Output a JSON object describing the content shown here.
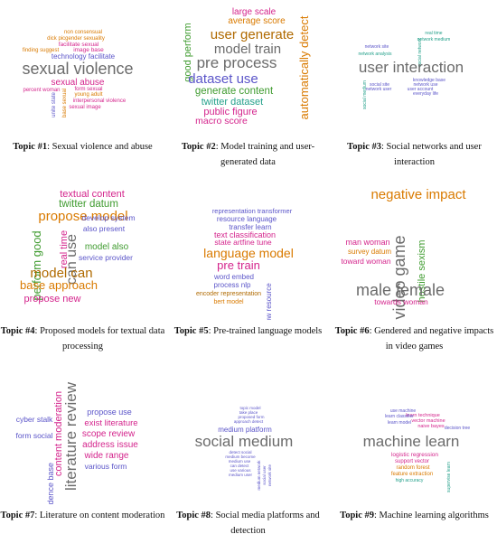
{
  "colors": {
    "gray": "#6b6b6b",
    "orange": "#d97a00",
    "green": "#3f9b2f",
    "magenta": "#d4248c",
    "purple": "#5b55c9",
    "teal": "#23a08a",
    "brown": "#b06a00"
  },
  "topics": [
    {
      "label": "Topic #1",
      "caption": ": Sexual violence and abuse",
      "words": [
        "non consensual",
        "dick picgender sexuality",
        "facilitate sexual",
        "finding suggest",
        "image base",
        "technology facilitate",
        "sexual violence",
        "sexual abuse",
        "percent woman",
        "form sexual",
        "young adult",
        "interpersonal violence",
        "sexual image",
        "unite state",
        "base sexual"
      ]
    },
    {
      "label": "Topic #2",
      "caption": ": Model training and user-generated data",
      "words": [
        "large scale",
        "average score",
        "good perform",
        "user generate",
        "model train",
        "pre process",
        "automatically detect",
        "dataset use",
        "generate content",
        "twitter dataset",
        "public figure",
        "macro score"
      ]
    },
    {
      "label": "Topic #3",
      "caption": ": Social networks and user interaction",
      "words": [
        "social network",
        "network site",
        "network analysis",
        "real time",
        "user interaction",
        "knowledge base",
        "social medium",
        "network use",
        "user account",
        "everyday life",
        "network user",
        "social site",
        "network medium"
      ]
    },
    {
      "label": "Topic #4",
      "caption": ": Proposed models for textual data processing",
      "words": [
        "textual content",
        "twitter datum",
        "propose model",
        "perform good",
        "real time",
        "can use",
        "develop system",
        "also present",
        "model also",
        "service provider",
        "model can",
        "base approach",
        "propose new"
      ]
    },
    {
      "label": "Topic #5",
      "caption": ": Pre-trained language models",
      "words": [
        "representation transformer",
        "resource language",
        "transfer learn",
        "text classification",
        "state artfine tune",
        "language model",
        "pre train",
        "word embed",
        "process nlp",
        "encoder representation",
        "bert model",
        "low resource"
      ]
    },
    {
      "label": "Topic #6",
      "caption": ": Gendered and negative impacts in video games",
      "words": [
        "negative impact",
        "video game",
        "man woman",
        "survey datum",
        "toward woman",
        "hostile sexism",
        "male female",
        "towards woman"
      ]
    },
    {
      "label": "Topic #7",
      "caption": ": Literature on content moderation",
      "words": [
        "literature review",
        "content moderation",
        "propose use",
        "exist literature",
        "cyber stalk",
        "scope review",
        "form social",
        "address issue",
        "wide range",
        "various form",
        "evidence base"
      ]
    },
    {
      "label": "Topic #8",
      "caption": ": Social media platforms and detection",
      "words": [
        "topic model",
        "take place",
        "proposed form",
        "approach detect",
        "medium platform",
        "social medium",
        "detect social",
        "medium become",
        "medium use",
        "can detect",
        "use various",
        "medium user",
        "medium network",
        "social user",
        "network site"
      ]
    },
    {
      "label": "Topic #9",
      "caption": ": Machine learning algorithms",
      "words": [
        "use machine",
        "learn technique",
        "learn classifier",
        "vector machine",
        "naive bayes",
        "learn model",
        "decision tree",
        "machine learn",
        "logistic regression",
        "support vector",
        "random forest",
        "feature extraction",
        "high accuracy",
        "supervise learn"
      ]
    }
  ]
}
